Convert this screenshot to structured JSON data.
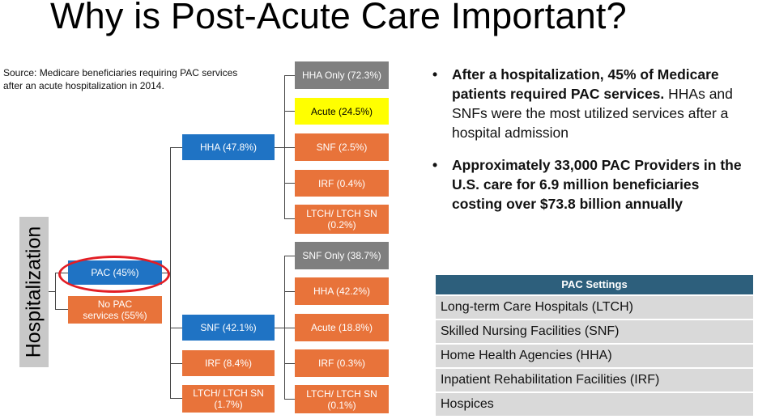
{
  "title": "Why is Post-Acute Care Important?",
  "source": "Source: Medicare beneficiaries requiring PAC services after an acute hospitalization in 2014.",
  "root": "Hospitalization",
  "level1": {
    "pac": "PAC (45%)",
    "no_pac": "No PAC services (55%)"
  },
  "level2": {
    "hha": "HHA (47.8%)",
    "snf": "SNF (42.1%)",
    "irf": "IRF (8.4%)",
    "ltch": "LTCH/ LTCH SN (1.7%)"
  },
  "hha_branch": {
    "only": "HHA Only (72.3%)",
    "acute": "Acute (24.5%)",
    "snf": "SNF (2.5%)",
    "irf": "IRF (0.4%)",
    "ltch": "LTCH/ LTCH SN (0.2%)"
  },
  "snf_branch": {
    "only": "SNF Only (38.7%)",
    "hha": "HHA (42.2%)",
    "acute": "Acute (18.8%)",
    "irf": "IRF (0.3%)",
    "ltch": "LTCH/ LTCH SN (0.1%)"
  },
  "bullets": [
    {
      "bold": "After a hospitalization, 45% of Medicare patients required PAC services.",
      "rest": " HHAs and SNFs were the most utilized services after a hospital admission"
    },
    {
      "bold": "Approximately 33,000 PAC Providers in the U.S. care for 6.9 million beneficiaries costing over $73.8 billion annually",
      "rest": ""
    }
  ],
  "pac_settings": {
    "header": "PAC Settings",
    "rows": [
      "Long-term Care Hospitals (LTCH)",
      "Skilled Nursing Facilities (SNF)",
      "Home Health Agencies (HHA)",
      "Inpatient Rehabilitation Facilities (IRF)",
      "Hospices"
    ]
  },
  "colors": {
    "orange": "#e8733a",
    "blue": "#1f73c4",
    "gray": "#7f7f7f",
    "yellow": "#ffff00",
    "highlight_ring": "#e21d24",
    "table_header": "#2d5f7c"
  }
}
